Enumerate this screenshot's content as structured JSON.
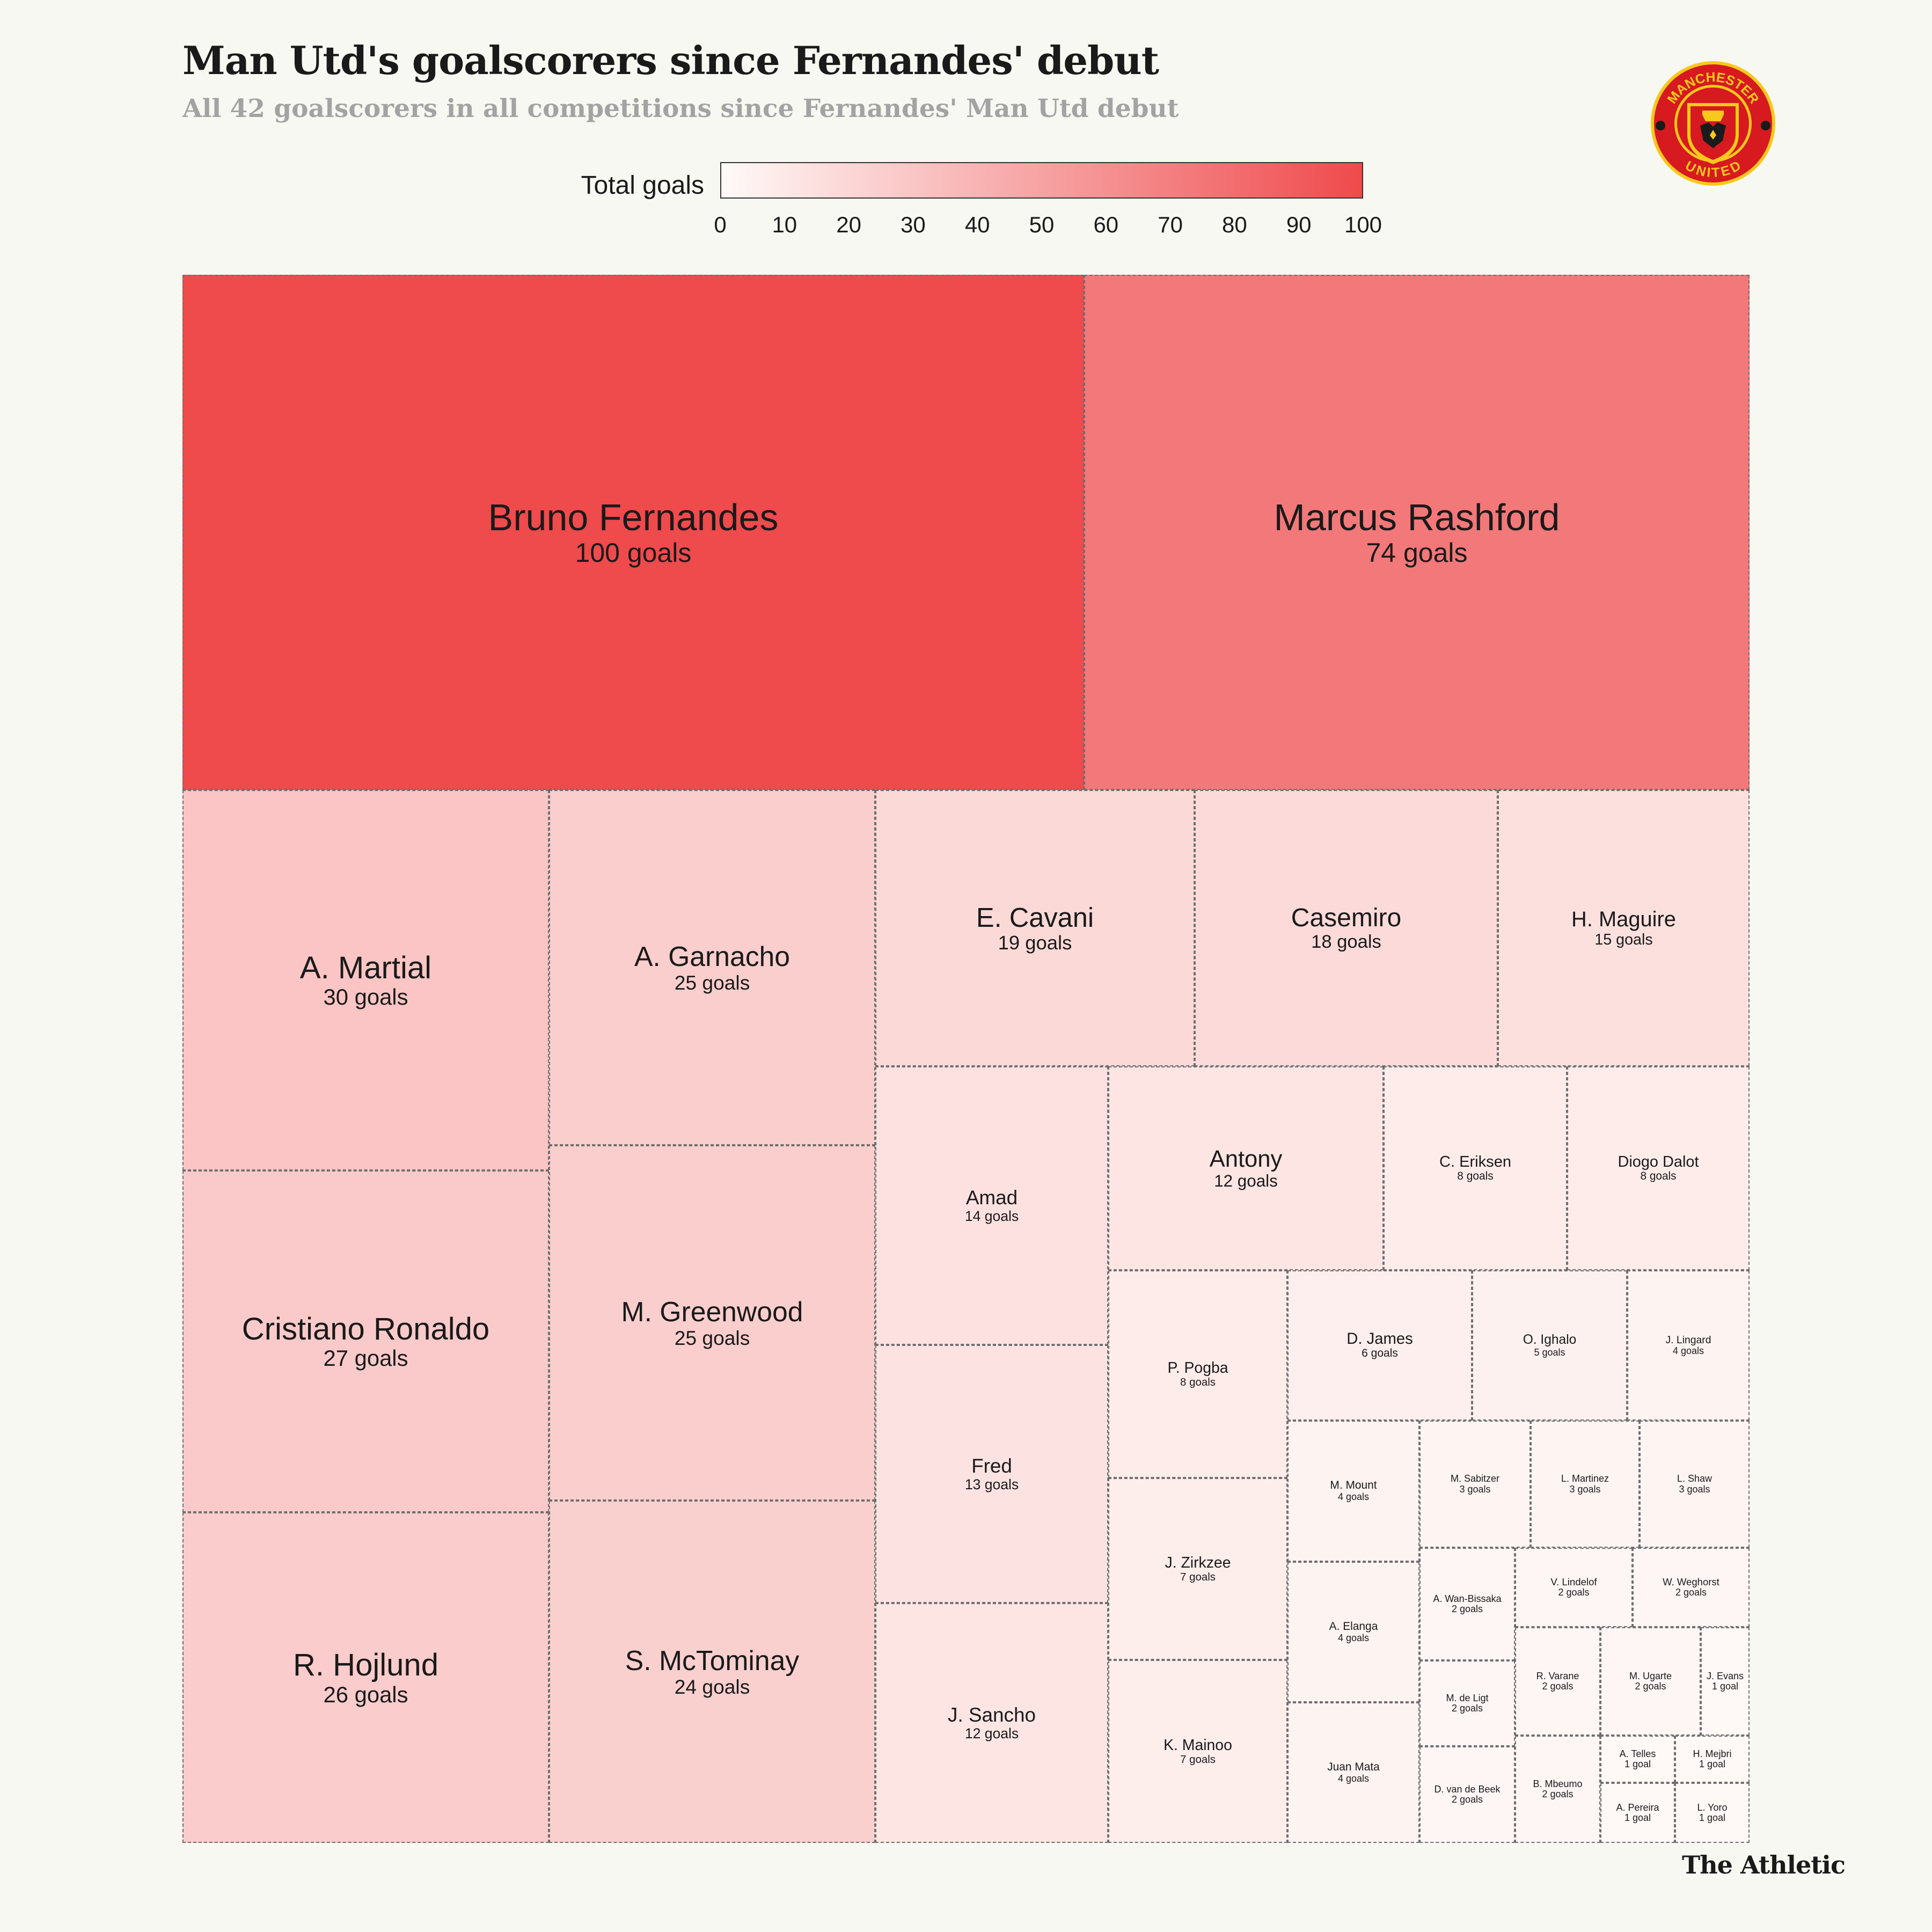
{
  "header": {
    "title": "Man Utd's goalscorers since Fernandes' debut",
    "subtitle": "All 42 goalscorers in all competitions since Fernandes' Man Utd debut"
  },
  "legend": {
    "label": "Total goals",
    "ticks": [
      "0",
      "10",
      "20",
      "30",
      "40",
      "50",
      "60",
      "70",
      "80",
      "90",
      "100"
    ],
    "color_low": "#fefaf8",
    "color_high": "#ef4a4c"
  },
  "logo": {
    "icon": "manchester-united-crest-icon",
    "top_text": "MANCHESTER",
    "bottom_text": "UNITED",
    "colors": {
      "ring": "#d71920",
      "gold": "#f7c91c",
      "black": "#1a1a1a"
    }
  },
  "colors": {
    "background": "#f8f8f3",
    "cell_border": "#6e6e6e"
  },
  "footer": {
    "brand": "The Athletic"
  },
  "chart_data": {
    "type": "treemap",
    "title": "Man Utd's goalscorers since Fernandes' debut",
    "subtitle": "All 42 goalscorers in all competitions since Fernandes' Man Utd debut",
    "color_scale": {
      "label": "Total goals",
      "min": 0,
      "max": 100
    },
    "items": [
      {
        "name": "Bruno Fernandes",
        "goals": 100,
        "label": "100 goals"
      },
      {
        "name": "Marcus Rashford",
        "goals": 74,
        "label": "74 goals"
      },
      {
        "name": "A. Martial",
        "goals": 30,
        "label": "30 goals"
      },
      {
        "name": "Cristiano Ronaldo",
        "goals": 27,
        "label": "27 goals"
      },
      {
        "name": "R. Hojlund",
        "goals": 26,
        "label": "26 goals"
      },
      {
        "name": "A. Garnacho",
        "goals": 25,
        "label": "25 goals"
      },
      {
        "name": "M. Greenwood",
        "goals": 25,
        "label": "25 goals"
      },
      {
        "name": "S. McTominay",
        "goals": 24,
        "label": "24 goals"
      },
      {
        "name": "E. Cavani",
        "goals": 19,
        "label": "19 goals"
      },
      {
        "name": "Casemiro",
        "goals": 18,
        "label": "18 goals"
      },
      {
        "name": "H. Maguire",
        "goals": 15,
        "label": "15 goals"
      },
      {
        "name": "Amad",
        "goals": 14,
        "label": "14 goals"
      },
      {
        "name": "Fred",
        "goals": 13,
        "label": "13 goals"
      },
      {
        "name": "J. Sancho",
        "goals": 12,
        "label": "12 goals"
      },
      {
        "name": "Antony",
        "goals": 12,
        "label": "12 goals"
      },
      {
        "name": "C. Eriksen",
        "goals": 8,
        "label": "8 goals"
      },
      {
        "name": "Diogo Dalot",
        "goals": 8,
        "label": "8 goals"
      },
      {
        "name": "P. Pogba",
        "goals": 8,
        "label": "8 goals"
      },
      {
        "name": "J. Zirkzee",
        "goals": 7,
        "label": "7 goals"
      },
      {
        "name": "K. Mainoo",
        "goals": 7,
        "label": "7 goals"
      },
      {
        "name": "D. James",
        "goals": 6,
        "label": "6 goals"
      },
      {
        "name": "O. Ighalo",
        "goals": 5,
        "label": "5 goals"
      },
      {
        "name": "J. Lingard",
        "goals": 4,
        "label": "4 goals"
      },
      {
        "name": "M. Mount",
        "goals": 4,
        "label": "4 goals"
      },
      {
        "name": "A. Elanga",
        "goals": 4,
        "label": "4 goals"
      },
      {
        "name": "Juan Mata",
        "goals": 4,
        "label": "4 goals"
      },
      {
        "name": "M. Sabitzer",
        "goals": 3,
        "label": "3 goals"
      },
      {
        "name": "L. Martinez",
        "goals": 3,
        "label": "3 goals"
      },
      {
        "name": "L. Shaw",
        "goals": 3,
        "label": "3 goals"
      },
      {
        "name": "A. Wan-Bissaka",
        "goals": 2,
        "label": "2 goals"
      },
      {
        "name": "V. Lindelof",
        "goals": 2,
        "label": "2 goals"
      },
      {
        "name": "W. Weghorst",
        "goals": 2,
        "label": "2 goals"
      },
      {
        "name": "M. de Ligt",
        "goals": 2,
        "label": "2 goals"
      },
      {
        "name": "R. Varane",
        "goals": 2,
        "label": "2 goals"
      },
      {
        "name": "M. Ugarte",
        "goals": 2,
        "label": "2 goals"
      },
      {
        "name": "D. van de Beek",
        "goals": 2,
        "label": "2 goals"
      },
      {
        "name": "B. Mbeumo",
        "goals": 2,
        "label": "2 goals"
      },
      {
        "name": "J. Evans",
        "goals": 1,
        "label": "1 goal"
      },
      {
        "name": "A. Telles",
        "goals": 1,
        "label": "1 goal"
      },
      {
        "name": "H. Mejbri",
        "goals": 1,
        "label": "1 goal"
      },
      {
        "name": "A. Pereira",
        "goals": 1,
        "label": "1 goal"
      },
      {
        "name": "L. Yoro",
        "goals": 1,
        "label": "1 goal"
      }
    ]
  }
}
